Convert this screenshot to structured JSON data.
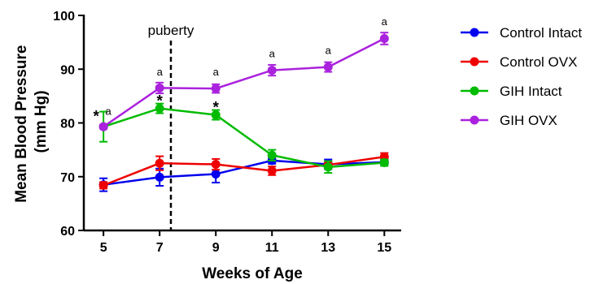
{
  "chart_data": {
    "type": "line",
    "xlabel": "Weeks of Age",
    "ylabel": [
      "Mean Blood Pressure",
      "(mm Hg)"
    ],
    "x": [
      5,
      7,
      9,
      11,
      13,
      15
    ],
    "xlim": [
      4.3,
      15.6
    ],
    "ylim": [
      60,
      100
    ],
    "yticks": [
      60,
      70,
      80,
      90,
      100
    ],
    "grid": false,
    "legend_position": "right",
    "series": [
      {
        "name": "Control Intact",
        "color": "#0000ee",
        "values": [
          68.5,
          69.9,
          70.5,
          73.0,
          72.3,
          72.7
        ],
        "errors": [
          1.2,
          1.6,
          1.6,
          0.6,
          0.9,
          0.5
        ]
      },
      {
        "name": "Control OVX",
        "color": "#ee0000",
        "values": [
          68.4,
          72.5,
          72.3,
          71.1,
          72.2,
          73.7
        ],
        "errors": [
          0.6,
          1.3,
          1.0,
          0.8,
          0.6,
          0.7
        ]
      },
      {
        "name": "GIH Intact",
        "color": "#00bb00",
        "values": [
          79.3,
          82.7,
          81.5,
          74.0,
          71.8,
          72.6
        ],
        "errors": [
          2.8,
          0.9,
          0.9,
          1.0,
          1.1,
          0.6
        ]
      },
      {
        "name": "GIH OVX",
        "color": "#aa22dd",
        "values": [
          79.3,
          86.5,
          86.4,
          89.8,
          90.4,
          95.7
        ],
        "errors": [
          0.4,
          1.0,
          0.8,
          1.0,
          0.9,
          1.1
        ]
      }
    ],
    "vertical_line": {
      "x": 7.4,
      "label": "puberty",
      "style": "dashed"
    },
    "annotations": [
      {
        "text": "*",
        "x": 5,
        "y": 81.5,
        "kind": "star",
        "dx": -9
      },
      {
        "text": "a",
        "x": 5,
        "y": 81.5,
        "kind": "a",
        "dx": 6
      },
      {
        "text": "a",
        "x": 7,
        "y": 88.8,
        "kind": "a",
        "dx": 0
      },
      {
        "text": "*",
        "x": 7,
        "y": 84.4,
        "kind": "star",
        "dx": 0
      },
      {
        "text": "a",
        "x": 9,
        "y": 88.8,
        "kind": "a",
        "dx": 0
      },
      {
        "text": "*",
        "x": 9,
        "y": 83.2,
        "kind": "star",
        "dx": 0
      },
      {
        "text": "a",
        "x": 11,
        "y": 92.2,
        "kind": "a",
        "dx": 0
      },
      {
        "text": "a",
        "x": 13,
        "y": 92.8,
        "kind": "a",
        "dx": 0
      },
      {
        "text": "a",
        "x": 15,
        "y": 98.2,
        "kind": "a",
        "dx": 0
      }
    ]
  }
}
